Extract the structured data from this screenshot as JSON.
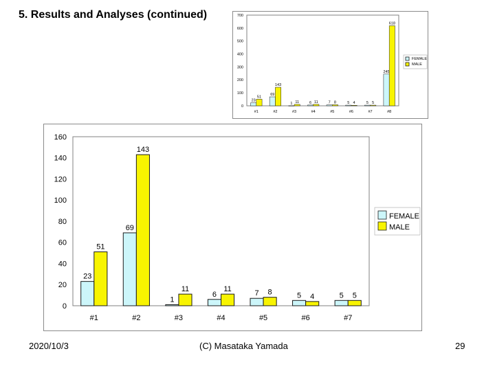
{
  "slide": {
    "title": "5. Results and Analyses (continued)",
    "footer_date": "2020/10/3",
    "footer_author": "(C) Masataka Yamada",
    "page_number": "29"
  },
  "colors": {
    "female": "#ccf6fa",
    "male": "#f8f400",
    "outline": "#1a1a1a",
    "plot_border": "#808080"
  },
  "chart_data": [
    {
      "id": "summary-chart",
      "type": "bar",
      "categories": [
        "#1",
        "#2",
        "#3",
        "#4",
        "#5",
        "#6",
        "#7",
        "#8"
      ],
      "series": [
        {
          "name": "FEMALE",
          "values": [
            23,
            69,
            1,
            6,
            7,
            5,
            5,
            245
          ],
          "labels": [
            "23",
            "69",
            "1",
            "6",
            "7",
            "5",
            "5",
            "245"
          ]
        },
        {
          "name": "MALE",
          "values": [
            51,
            143,
            11,
            11,
            8,
            4,
            5,
            618
          ],
          "labels": [
            "51",
            "143",
            "11",
            "11",
            "8",
            "4",
            "5",
            "618"
          ]
        }
      ],
      "ylim": [
        0,
        700
      ],
      "yticks": [
        "0",
        "100",
        "200",
        "300",
        "400",
        "500",
        "600",
        "700"
      ],
      "legend_position": "right"
    },
    {
      "id": "detail-chart",
      "type": "bar",
      "categories": [
        "#1",
        "#2",
        "#3",
        "#4",
        "#5",
        "#6",
        "#7"
      ],
      "series": [
        {
          "name": "FEMALE",
          "values": [
            23,
            69,
            1,
            6,
            7,
            5,
            5
          ],
          "labels": [
            "23",
            "69",
            "1",
            "6",
            "7",
            "5",
            "5"
          ]
        },
        {
          "name": "MALE",
          "values": [
            51,
            143,
            11,
            11,
            8,
            4,
            5
          ],
          "labels": [
            "51",
            "143",
            "11",
            "11",
            "8",
            "4",
            "5"
          ]
        }
      ],
      "ylim": [
        0,
        160
      ],
      "yticks": [
        "0",
        "20",
        "40",
        "60",
        "80",
        "100",
        "120",
        "140",
        "160"
      ],
      "legend_position": "right"
    }
  ]
}
